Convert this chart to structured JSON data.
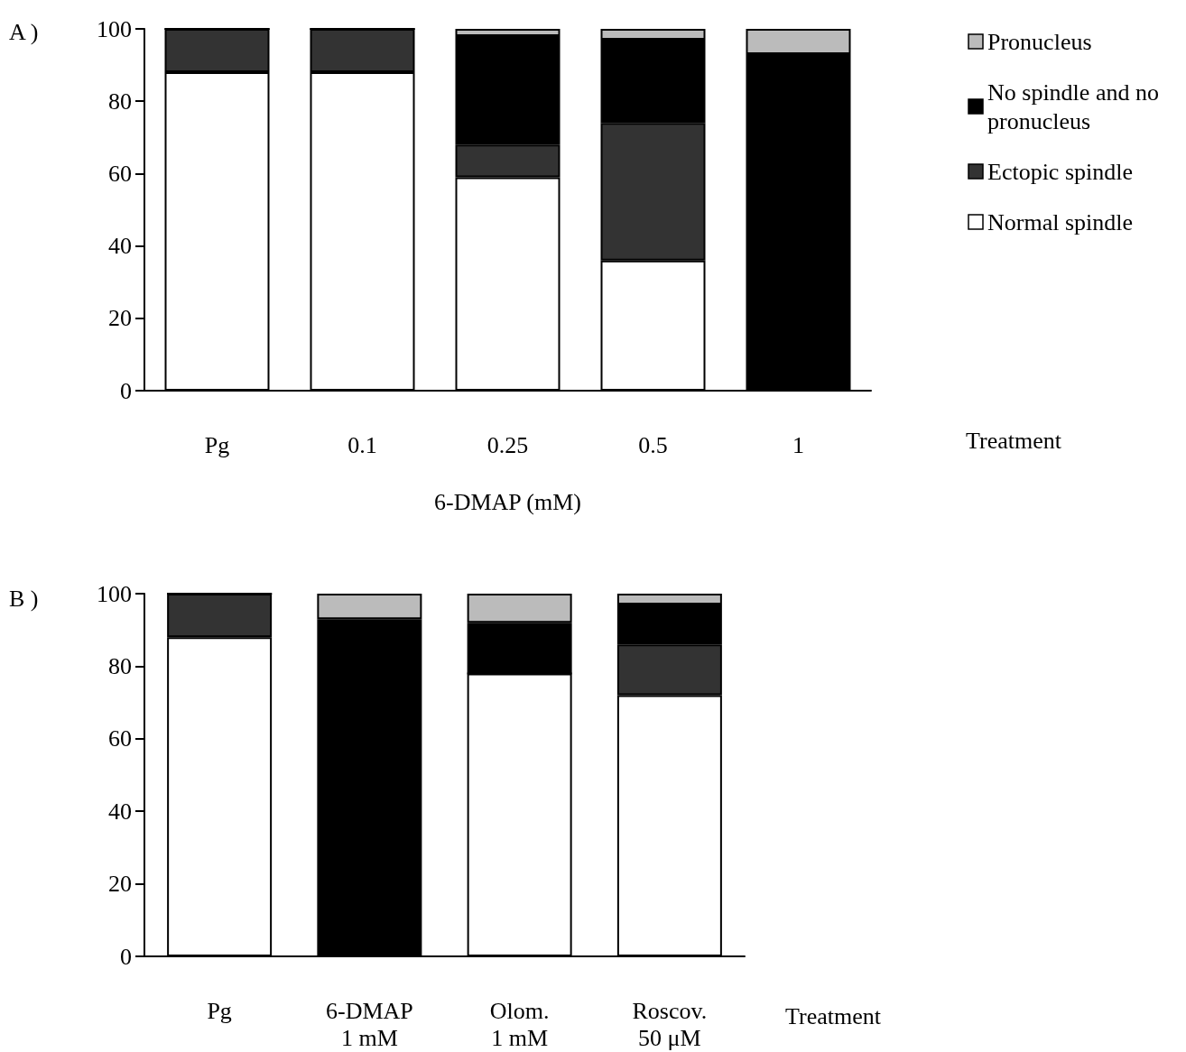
{
  "chart_data": [
    {
      "type": "bar",
      "stacked": true,
      "xlabel": "6-DMAP (mM)",
      "annotations": [
        "A )",
        "Treatment"
      ],
      "categories": [
        "Pg",
        "0.1",
        "0.25",
        "0.5",
        "1"
      ],
      "ylim": [
        0,
        100
      ],
      "yticks": [
        0,
        20,
        40,
        60,
        80,
        100
      ],
      "grid": false,
      "legend": "right",
      "series": [
        {
          "name": "Normal spindle",
          "color": "#ffffff",
          "values": [
            88,
            88,
            59,
            36,
            0
          ]
        },
        {
          "name": "Ectopic spindle",
          "color": "#333333",
          "values": [
            12,
            12,
            9,
            38,
            0
          ]
        },
        {
          "name": "No spindle and no pronucleus",
          "color": "#000000",
          "values": [
            0,
            0,
            30,
            23,
            93
          ]
        },
        {
          "name": "Pronucleus",
          "color": "#bbbbbb",
          "values": [
            0,
            0,
            2,
            3,
            7
          ]
        }
      ]
    },
    {
      "type": "bar",
      "stacked": true,
      "annotations": [
        "B )",
        "Treatment"
      ],
      "categories": [
        "Pg",
        "6-DMAP\n1 mM",
        "Olom.\n1 mM",
        "Roscov.\n50 μM"
      ],
      "ylim": [
        0,
        100
      ],
      "yticks": [
        0,
        20,
        40,
        60,
        80,
        100
      ],
      "grid": false,
      "legend": false,
      "series": [
        {
          "color": "#ffffff",
          "values": [
            88,
            0,
            78,
            72
          ]
        },
        {
          "color": "#333333",
          "values": [
            12,
            0,
            0,
            14
          ]
        },
        {
          "color": "#000000",
          "values": [
            0,
            93,
            14,
            11
          ]
        },
        {
          "color": "#bbbbbb",
          "values": [
            0,
            7,
            8,
            3
          ]
        }
      ]
    }
  ]
}
